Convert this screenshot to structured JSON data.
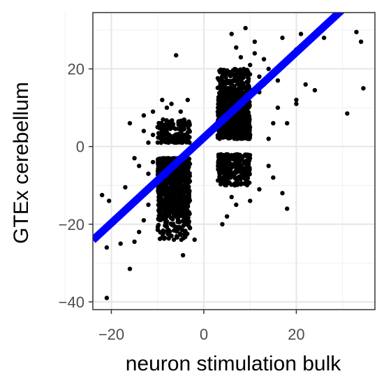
{
  "chart_data": {
    "type": "scatter",
    "title": "",
    "xlabel": "neuron stimulation bulk",
    "ylabel": "GTEx cerebellum",
    "xlim": [
      -24,
      37
    ],
    "ylim": [
      -42,
      34.5
    ],
    "x_ticks": [
      -20,
      0,
      20
    ],
    "x_tick_labels": [
      "−20",
      "0",
      "20"
    ],
    "y_ticks": [
      -40,
      -20,
      0,
      20
    ],
    "y_tick_labels": [
      "−40",
      "−20",
      "0",
      "20"
    ],
    "grid": true,
    "legend": "none",
    "point_color": "#000000",
    "fit_line": {
      "color": "#0000ff",
      "slope": 1.1,
      "intercept": 2.3
    },
    "point_clouds": [
      {
        "x_range": [
          -10,
          -3
        ],
        "y_range": [
          -3,
          -18
        ],
        "count": 700,
        "note": "lower-left dense"
      },
      {
        "x_range": [
          -10,
          -3
        ],
        "y_range": [
          1,
          7
        ],
        "count": 160
      },
      {
        "x_range": [
          3,
          10
        ],
        "y_range": [
          2,
          14
        ],
        "count": 700,
        "note": "upper-right dense"
      },
      {
        "x_range": [
          3,
          10
        ],
        "y_range": [
          14,
          20
        ],
        "count": 160
      },
      {
        "x_range": [
          3,
          10
        ],
        "y_range": [
          -2,
          -10
        ],
        "count": 260
      },
      {
        "x_range": [
          -10,
          -3
        ],
        "y_range": [
          -18,
          -24
        ],
        "count": 90
      }
    ],
    "outliers": [
      [
        -21,
        -39
      ],
      [
        -21,
        -26
      ],
      [
        -22,
        -12.5
      ],
      [
        -20.5,
        -14
      ],
      [
        -18,
        -25
      ],
      [
        -16,
        -31.5
      ],
      [
        -15,
        -24.5
      ],
      [
        -17,
        -10.5
      ],
      [
        -16,
        6
      ],
      [
        -14,
        -22
      ],
      [
        -13,
        -19
      ],
      [
        -12,
        -15
      ],
      [
        -13,
        4
      ],
      [
        -11,
        9
      ],
      [
        -9,
        12
      ],
      [
        -8,
        10
      ],
      [
        -6,
        23.5
      ],
      [
        -4.5,
        -28
      ],
      [
        -7,
        -23
      ],
      [
        -12,
        -7
      ],
      [
        -14,
        -5
      ],
      [
        -11,
        -4
      ],
      [
        -15,
        -3
      ],
      [
        -12,
        1
      ],
      [
        -11,
        3
      ],
      [
        9,
        30.5
      ],
      [
        11,
        24
      ],
      [
        13,
        22.5
      ],
      [
        17,
        28
      ],
      [
        21,
        29
      ],
      [
        12,
        18
      ],
      [
        14,
        20
      ],
      [
        20,
        25
      ],
      [
        22,
        27
      ],
      [
        24,
        14.5
      ],
      [
        26,
        28
      ],
      [
        20,
        11
      ],
      [
        16,
        10
      ],
      [
        15,
        6
      ],
      [
        18,
        6
      ],
      [
        14,
        2
      ],
      [
        31,
        8.5
      ],
      [
        33,
        29.5
      ],
      [
        34,
        27
      ],
      [
        34.5,
        15
      ],
      [
        20,
        12
      ],
      [
        22,
        16
      ],
      [
        18,
        -16
      ],
      [
        12,
        -11
      ],
      [
        14,
        -5
      ],
      [
        15,
        -8
      ],
      [
        17,
        -12
      ],
      [
        12,
        14
      ],
      [
        13,
        16
      ],
      [
        16,
        17
      ],
      [
        11,
        27
      ],
      [
        10,
        21
      ],
      [
        8,
        23
      ],
      [
        7,
        25.5
      ],
      [
        6,
        29
      ],
      [
        5,
        -18
      ],
      [
        7,
        -15
      ],
      [
        10,
        -14
      ],
      [
        4,
        -20
      ],
      [
        6,
        -13
      ],
      [
        -3,
        -21
      ],
      [
        -2,
        -24
      ],
      [
        -4,
        -20
      ],
      [
        -5,
        -17
      ],
      [
        -13,
        8
      ],
      [
        -10,
        5
      ],
      [
        -8,
        6
      ],
      [
        -7,
        11
      ],
      [
        -5,
        9
      ],
      [
        -3.5,
        12
      ]
    ]
  }
}
